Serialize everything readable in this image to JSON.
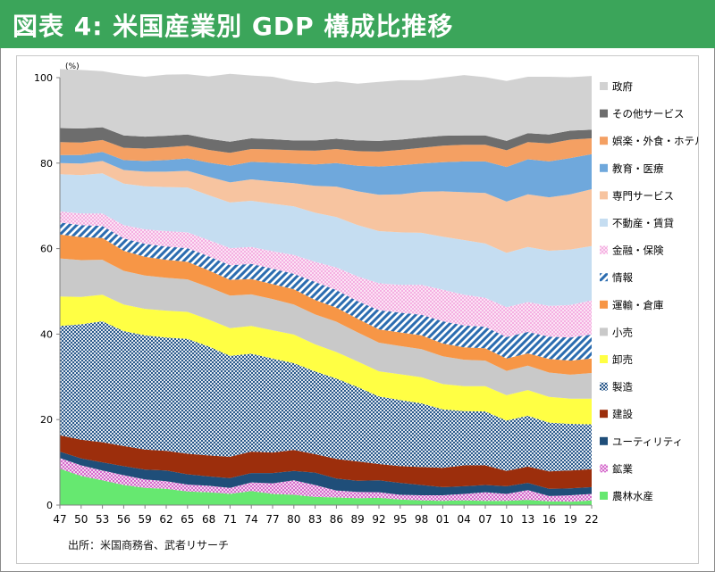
{
  "title": "図表 4: 米国産業別 GDP 構成比推移",
  "source": "出所：米国商務省、武者リサーチ",
  "chart_data": {
    "type": "area",
    "stacked": true,
    "unit_label": "(%)",
    "ylim": [
      0,
      100
    ],
    "y_ticks": [
      0,
      20,
      40,
      60,
      80,
      100
    ],
    "x_tick_labels": [
      "47",
      "50",
      "53",
      "56",
      "59",
      "62",
      "65",
      "68",
      "71",
      "74",
      "77",
      "80",
      "83",
      "86",
      "89",
      "92",
      "95",
      "98",
      "01",
      "04",
      "07",
      "10",
      "13",
      "16",
      "19",
      "22"
    ],
    "x_tick_years": [
      1947,
      1950,
      1953,
      1956,
      1959,
      1962,
      1965,
      1968,
      1971,
      1974,
      1977,
      1980,
      1983,
      1986,
      1989,
      1992,
      1995,
      1998,
      2001,
      2004,
      2007,
      2010,
      2013,
      2016,
      2019,
      2022
    ],
    "grid": false,
    "legend_position": "right",
    "series": [
      {
        "name": "農林水産",
        "color": "#66e870",
        "pattern": "solid",
        "values": [
          8.5,
          6.8,
          5.8,
          4.7,
          4.0,
          3.8,
          3.2,
          3.0,
          2.6,
          3.3,
          2.6,
          2.4,
          1.9,
          1.8,
          1.6,
          1.7,
          1.3,
          1.1,
          1.0,
          1.1,
          1.0,
          1.0,
          1.2,
          0.9,
          0.8,
          1.1
        ]
      },
      {
        "name": "鉱業",
        "color": "#d25fc8",
        "pattern": "diag",
        "values": [
          2.5,
          2.5,
          2.3,
          2.3,
          2.0,
          1.8,
          1.6,
          1.5,
          1.4,
          2.0,
          2.5,
          3.4,
          2.8,
          1.6,
          1.5,
          1.3,
          1.1,
          1.2,
          1.3,
          1.5,
          2.0,
          1.6,
          2.3,
          1.2,
          1.5,
          1.5
        ]
      },
      {
        "name": "ユーティリティ",
        "color": "#1f4e79",
        "pattern": "solid",
        "values": [
          1.5,
          1.6,
          1.9,
          2.1,
          2.3,
          2.5,
          2.4,
          2.2,
          2.3,
          2.2,
          2.4,
          2.2,
          2.9,
          2.8,
          2.6,
          2.8,
          2.8,
          2.4,
          1.9,
          1.8,
          1.7,
          1.8,
          1.7,
          1.7,
          1.6,
          1.6
        ]
      },
      {
        "name": "建設",
        "color": "#9c2e0c",
        "pattern": "solid",
        "values": [
          3.8,
          4.4,
          4.7,
          4.7,
          4.7,
          4.6,
          4.8,
          4.9,
          5.0,
          5.0,
          4.8,
          4.9,
          4.3,
          4.6,
          4.5,
          3.8,
          3.9,
          4.2,
          4.5,
          4.9,
          4.6,
          3.6,
          3.8,
          4.1,
          4.2,
          4.2
        ]
      },
      {
        "name": "製造",
        "color": "#2b5a8c",
        "pattern": "checker",
        "values": [
          25.6,
          27.0,
          28.3,
          26.9,
          26.7,
          26.5,
          26.9,
          25.5,
          23.6,
          22.9,
          22.0,
          20.3,
          19.4,
          18.8,
          17.4,
          15.8,
          15.5,
          14.9,
          13.7,
          12.7,
          12.6,
          11.8,
          11.9,
          11.4,
          10.9,
          10.5
        ]
      },
      {
        "name": "卸売",
        "color": "#ffff44",
        "pattern": "solid",
        "values": [
          6.9,
          6.4,
          6.2,
          6.2,
          6.2,
          6.3,
          6.3,
          6.3,
          6.5,
          6.5,
          6.6,
          6.7,
          6.3,
          6.2,
          6.0,
          5.9,
          6.0,
          6.1,
          5.9,
          5.8,
          5.9,
          5.9,
          6.0,
          6.0,
          5.9,
          6.0
        ]
      },
      {
        "name": "小売",
        "color": "#c9c9c9",
        "pattern": "solid",
        "values": [
          8.9,
          8.6,
          8.2,
          7.9,
          7.8,
          7.7,
          7.6,
          7.6,
          7.6,
          7.4,
          7.3,
          7.0,
          7.0,
          7.1,
          6.8,
          6.7,
          6.6,
          6.6,
          6.5,
          6.2,
          6.0,
          5.7,
          5.7,
          5.7,
          5.6,
          6.0
        ]
      },
      {
        "name": "運輸・倉庫",
        "color": "#f79646",
        "pattern": "solid",
        "values": [
          5.6,
          5.4,
          5.1,
          4.7,
          4.4,
          4.2,
          4.1,
          3.9,
          3.7,
          3.6,
          3.5,
          3.6,
          3.4,
          3.3,
          3.2,
          3.1,
          3.2,
          3.2,
          3.0,
          2.9,
          2.9,
          2.9,
          2.9,
          3.2,
          3.3,
          3.4
        ]
      },
      {
        "name": "情報",
        "color": "#2b6cb0",
        "pattern": "stripe",
        "values": [
          2.8,
          2.8,
          2.8,
          2.9,
          3.0,
          3.1,
          3.2,
          3.3,
          3.4,
          3.5,
          3.6,
          3.6,
          4.2,
          4.1,
          4.1,
          4.5,
          4.6,
          4.8,
          5.2,
          5.1,
          5.0,
          5.0,
          5.0,
          5.2,
          5.4,
          5.6
        ]
      },
      {
        "name": "金融・保険",
        "color": "#f28bd6",
        "pattern": "dots",
        "values": [
          2.6,
          2.7,
          2.9,
          3.1,
          3.4,
          3.6,
          3.7,
          3.8,
          4.0,
          4.0,
          4.1,
          4.4,
          4.7,
          5.3,
          5.8,
          6.3,
          6.5,
          7.0,
          7.4,
          7.2,
          6.8,
          7.0,
          7.0,
          7.2,
          7.6,
          8.0
        ]
      },
      {
        "name": "不動産・賃貸",
        "color": "#c5ddf1",
        "pattern": "solid",
        "values": [
          8.7,
          9.0,
          9.4,
          9.7,
          10.1,
          10.3,
          10.5,
          10.5,
          10.7,
          10.8,
          11.1,
          11.4,
          11.5,
          11.8,
          12.0,
          12.2,
          12.3,
          12.2,
          12.4,
          12.8,
          12.7,
          12.7,
          12.9,
          12.9,
          13.0,
          12.7
        ]
      },
      {
        "name": "専門サービス",
        "color": "#f7c4a0",
        "pattern": "solid",
        "values": [
          2.6,
          2.7,
          2.9,
          3.2,
          3.4,
          3.6,
          3.9,
          4.3,
          4.7,
          5.0,
          5.2,
          5.4,
          6.3,
          7.1,
          7.9,
          8.5,
          8.9,
          9.6,
          10.6,
          11.2,
          11.8,
          12.0,
          12.3,
          12.5,
          12.9,
          13.3
        ]
      },
      {
        "name": "教育・医療",
        "color": "#6fa8dc",
        "pattern": "solid",
        "values": [
          1.9,
          2.0,
          2.1,
          2.3,
          2.5,
          2.7,
          2.9,
          3.3,
          3.9,
          4.1,
          4.4,
          4.6,
          5.0,
          5.5,
          6.0,
          6.6,
          6.8,
          6.6,
          6.8,
          7.2,
          7.4,
          8.1,
          8.2,
          8.4,
          8.5,
          8.2
        ]
      },
      {
        "name": "娯楽・外食・ホテル",
        "color": "#f4a063",
        "pattern": "solid",
        "values": [
          3.0,
          2.9,
          2.8,
          2.9,
          2.9,
          3.0,
          3.0,
          3.0,
          3.0,
          3.0,
          3.1,
          3.1,
          3.2,
          3.3,
          3.4,
          3.5,
          3.6,
          3.7,
          3.9,
          3.9,
          3.9,
          3.9,
          4.0,
          4.2,
          4.3,
          3.7
        ]
      },
      {
        "name": "その他サービス",
        "color": "#6d6d6d",
        "pattern": "solid",
        "values": [
          3.3,
          3.3,
          3.0,
          2.9,
          2.8,
          2.7,
          2.6,
          2.6,
          2.6,
          2.5,
          2.4,
          2.3,
          2.4,
          2.4,
          2.5,
          2.5,
          2.4,
          2.4,
          2.3,
          2.2,
          2.2,
          2.2,
          2.1,
          2.1,
          2.1,
          2.0
        ]
      },
      {
        "name": "政府",
        "color": "#d2d2d2",
        "pattern": "solid",
        "values": [
          13.8,
          13.7,
          13.1,
          14.2,
          14.0,
          14.3,
          14.1,
          14.6,
          15.9,
          14.7,
          14.6,
          13.9,
          13.4,
          13.4,
          13.3,
          13.8,
          13.9,
          13.4,
          13.6,
          14.1,
          13.6,
          14.0,
          13.2,
          13.5,
          12.5,
          12.6
        ]
      }
    ]
  }
}
